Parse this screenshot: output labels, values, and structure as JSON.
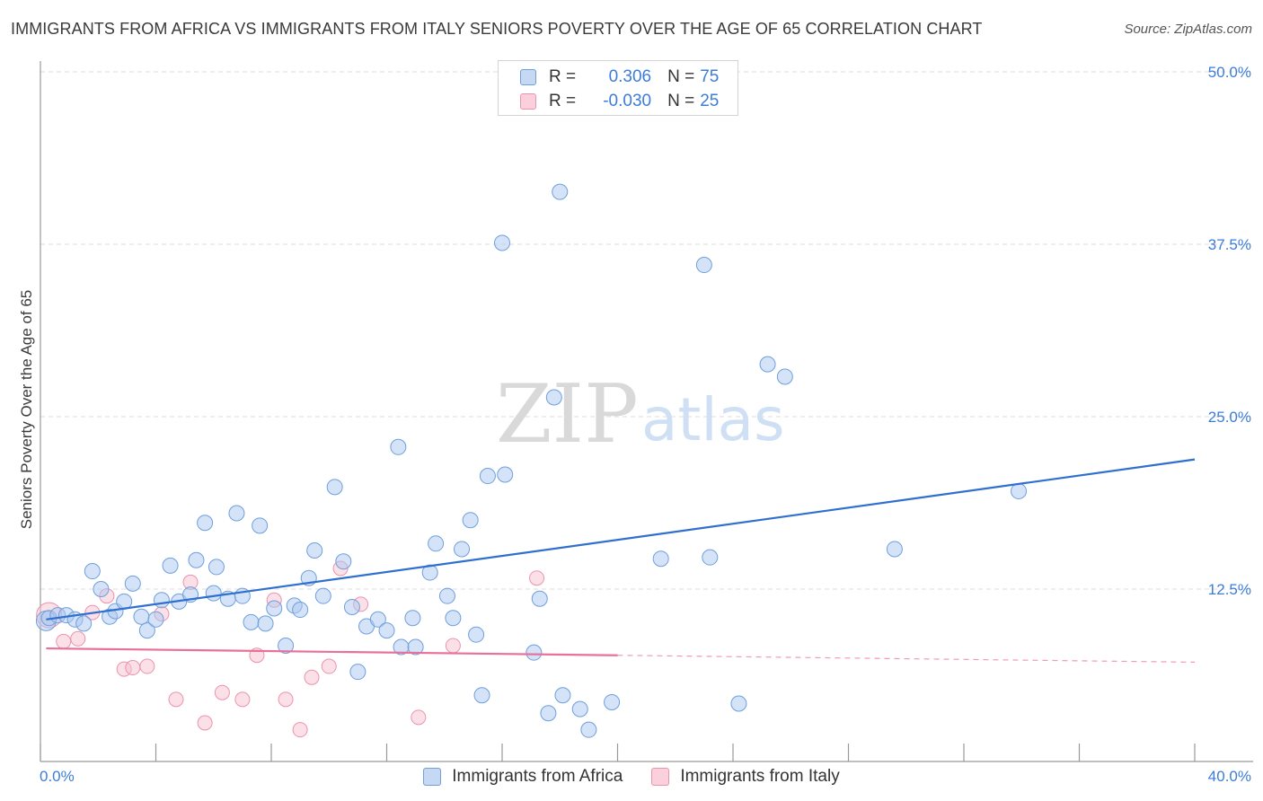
{
  "title": "IMMIGRANTS FROM AFRICA VS IMMIGRANTS FROM ITALY SENIORS POVERTY OVER THE AGE OF 65 CORRELATION CHART",
  "source": "Source: ZipAtlas.com",
  "watermark": {
    "zip": "ZIP",
    "atlas": "atlas"
  },
  "legend": {
    "r_label": "R =",
    "n_label": "N =",
    "africa": {
      "r": "0.306",
      "n": "75"
    },
    "italy": {
      "r": "-0.030",
      "n": "25"
    }
  },
  "colors": {
    "africa_fill": "#a9c8ef",
    "africa_stroke": "#6f9fdc",
    "africa_line": "#2f6fd0",
    "italy_fill": "#f8c1d2",
    "italy_stroke": "#ea93ad",
    "italy_line": "#e8709a",
    "grid": "#dddddd",
    "tick_text": "#3b7dd8"
  },
  "chart_data": {
    "type": "scatter",
    "title": "IMMIGRANTS FROM AFRICA VS IMMIGRANTS FROM ITALY SENIORS POVERTY OVER THE AGE OF 65 CORRELATION CHART",
    "xlabel": "",
    "ylabel": "Seniors Poverty Over the Age of 65",
    "xlim": [
      0,
      40
    ],
    "ylim": [
      0,
      50
    ],
    "x_tick_labels": [
      "0.0%",
      "40.0%"
    ],
    "y_ticks": [
      12.5,
      25.0,
      37.5,
      50.0
    ],
    "y_tick_labels": [
      "12.5%",
      "25.0%",
      "37.5%",
      "50.0%"
    ],
    "grid": true,
    "legend_position": "top-center",
    "series": [
      {
        "name": "Immigrants from Africa",
        "r": 0.306,
        "n": 75,
        "trend": {
          "x": [
            0.2,
            40
          ],
          "y": [
            10.3,
            21.9
          ],
          "extends_dashed": false
        },
        "points": [
          [
            0.2,
            10.2
          ],
          [
            0.3,
            10.4
          ],
          [
            0.6,
            10.6
          ],
          [
            0.9,
            10.6
          ],
          [
            1.2,
            10.3
          ],
          [
            1.5,
            10.0
          ],
          [
            1.8,
            13.8
          ],
          [
            2.1,
            12.5
          ],
          [
            2.4,
            10.5
          ],
          [
            2.6,
            10.9
          ],
          [
            2.9,
            11.6
          ],
          [
            3.2,
            12.9
          ],
          [
            3.5,
            10.5
          ],
          [
            3.7,
            9.5
          ],
          [
            4.0,
            10.3
          ],
          [
            4.2,
            11.7
          ],
          [
            4.5,
            14.2
          ],
          [
            4.8,
            11.6
          ],
          [
            5.2,
            12.1
          ],
          [
            5.4,
            14.6
          ],
          [
            5.7,
            17.3
          ],
          [
            6.0,
            12.2
          ],
          [
            6.1,
            14.1
          ],
          [
            6.5,
            11.8
          ],
          [
            6.8,
            18.0
          ],
          [
            7.0,
            12.0
          ],
          [
            7.3,
            10.1
          ],
          [
            7.6,
            17.1
          ],
          [
            7.8,
            10.0
          ],
          [
            8.1,
            11.1
          ],
          [
            8.5,
            8.4
          ],
          [
            8.8,
            11.3
          ],
          [
            9.0,
            11.0
          ],
          [
            9.3,
            13.3
          ],
          [
            9.5,
            15.3
          ],
          [
            9.8,
            12.0
          ],
          [
            10.2,
            19.9
          ],
          [
            10.5,
            14.5
          ],
          [
            10.8,
            11.2
          ],
          [
            11.0,
            6.5
          ],
          [
            11.3,
            9.8
          ],
          [
            11.7,
            10.3
          ],
          [
            12.0,
            9.5
          ],
          [
            12.4,
            22.8
          ],
          [
            12.5,
            8.3
          ],
          [
            12.9,
            10.4
          ],
          [
            13.0,
            8.3
          ],
          [
            13.5,
            13.7
          ],
          [
            13.7,
            15.8
          ],
          [
            14.1,
            12.0
          ],
          [
            14.3,
            10.4
          ],
          [
            14.6,
            15.4
          ],
          [
            14.9,
            17.5
          ],
          [
            15.1,
            9.2
          ],
          [
            15.3,
            4.8
          ],
          [
            15.5,
            20.7
          ],
          [
            16.1,
            20.8
          ],
          [
            16.0,
            37.6
          ],
          [
            17.1,
            7.9
          ],
          [
            17.3,
            11.8
          ],
          [
            17.6,
            3.5
          ],
          [
            18.0,
            41.3
          ],
          [
            17.8,
            26.4
          ],
          [
            18.1,
            4.8
          ],
          [
            18.7,
            3.8
          ],
          [
            19.0,
            2.3
          ],
          [
            19.8,
            4.3
          ],
          [
            21.5,
            14.7
          ],
          [
            23.0,
            36.0
          ],
          [
            23.2,
            14.8
          ],
          [
            24.2,
            4.2
          ],
          [
            25.2,
            28.8
          ],
          [
            25.8,
            27.9
          ],
          [
            29.6,
            15.4
          ],
          [
            33.9,
            19.6
          ]
        ]
      },
      {
        "name": "Immigrants from Italy",
        "r": -0.03,
        "n": 25,
        "trend": {
          "x": [
            0.2,
            20
          ],
          "y": [
            8.2,
            7.7
          ],
          "dashed_to": [
            40,
            7.2
          ]
        },
        "points": [
          [
            0.3,
            10.6
          ],
          [
            0.8,
            8.7
          ],
          [
            1.3,
            8.9
          ],
          [
            1.8,
            10.8
          ],
          [
            2.3,
            12.0
          ],
          [
            2.9,
            6.7
          ],
          [
            3.2,
            6.8
          ],
          [
            3.7,
            6.9
          ],
          [
            4.2,
            10.7
          ],
          [
            4.7,
            4.5
          ],
          [
            5.2,
            13.0
          ],
          [
            5.7,
            2.8
          ],
          [
            6.3,
            5.0
          ],
          [
            7.0,
            4.5
          ],
          [
            7.5,
            7.7
          ],
          [
            8.1,
            11.7
          ],
          [
            8.5,
            4.5
          ],
          [
            9.0,
            2.3
          ],
          [
            9.4,
            6.1
          ],
          [
            10.0,
            6.9
          ],
          [
            10.4,
            14.0
          ],
          [
            11.1,
            11.4
          ],
          [
            13.1,
            3.2
          ],
          [
            14.3,
            8.4
          ],
          [
            17.2,
            13.3
          ]
        ]
      }
    ]
  },
  "bottom_legend": {
    "africa": "Immigrants from Africa",
    "italy": "Immigrants from Italy"
  }
}
